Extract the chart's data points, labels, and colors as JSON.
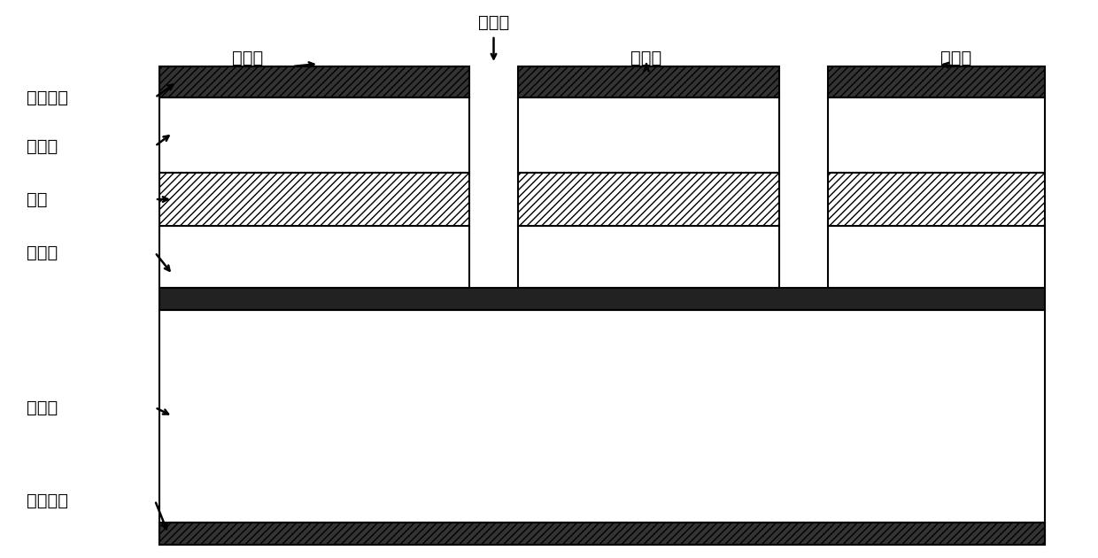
{
  "fig_width": 12.4,
  "fig_height": 6.3,
  "bg_color": "#ffffff",
  "line_color": "#000000",
  "hatch_color": "#000000",
  "solid_dark_color": "#1a1a1a",
  "labels": {
    "konggicao": "空气槽",
    "zengyiqiang1": "增益腔",
    "zengyiqiang2": "增益腔",
    "lvboqi": "滤波器",
    "zhengmiandianji": "正面电极",
    "shangbaoceng": "上包层",
    "xinceng": "芯层",
    "huanchongceng": "缓冲层",
    "chendiceng": "衬底层",
    "beimiandianj": "背面电极"
  },
  "font_size": 14,
  "bold": true
}
